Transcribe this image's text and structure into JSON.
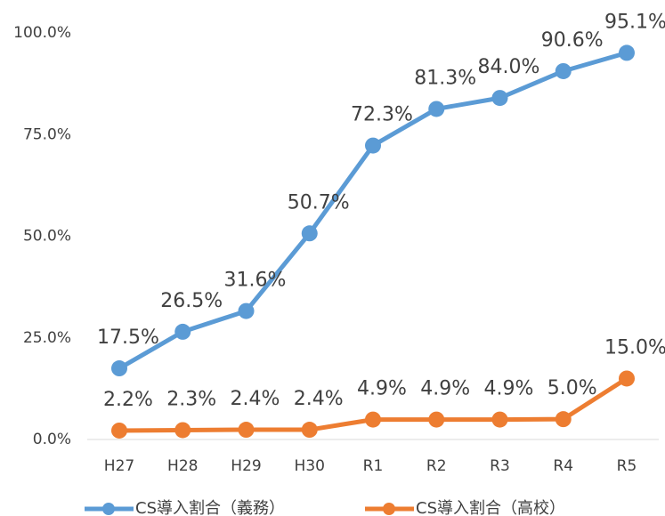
{
  "chart_data": {
    "type": "line",
    "categories": [
      "H27",
      "H28",
      "H29",
      "H30",
      "R1",
      "R2",
      "R3",
      "R4",
      "R5"
    ],
    "series": [
      {
        "name": "CS導入割合（義務）",
        "color": "#5b9bd5",
        "values": [
          17.5,
          26.5,
          31.6,
          50.7,
          72.3,
          81.3,
          84.0,
          90.6,
          95.1
        ],
        "value_labels": [
          "17.5%",
          "26.5%",
          "31.6%",
          "50.7%",
          "72.3%",
          "81.3%",
          "84.0%",
          "90.6%",
          "95.1%"
        ]
      },
      {
        "name": "CS導入割合（高校）",
        "color": "#ed7d31",
        "values": [
          2.2,
          2.3,
          2.4,
          2.4,
          4.9,
          4.9,
          4.9,
          5.0,
          15.0
        ],
        "value_labels": [
          "2.2%",
          "2.3%",
          "2.4%",
          "2.4%",
          "4.9%",
          "4.9%",
          "4.9%",
          "5.0%",
          "15.0%"
        ]
      }
    ],
    "ylim": [
      0,
      100
    ],
    "yticks": [
      {
        "value": 0,
        "label": "0.0%"
      },
      {
        "value": 25,
        "label": "25.0%"
      },
      {
        "value": 50,
        "label": "50.0%"
      },
      {
        "value": 75,
        "label": "75.0%"
      },
      {
        "value": 100,
        "label": "100.0%"
      }
    ],
    "legend": "bottom"
  }
}
